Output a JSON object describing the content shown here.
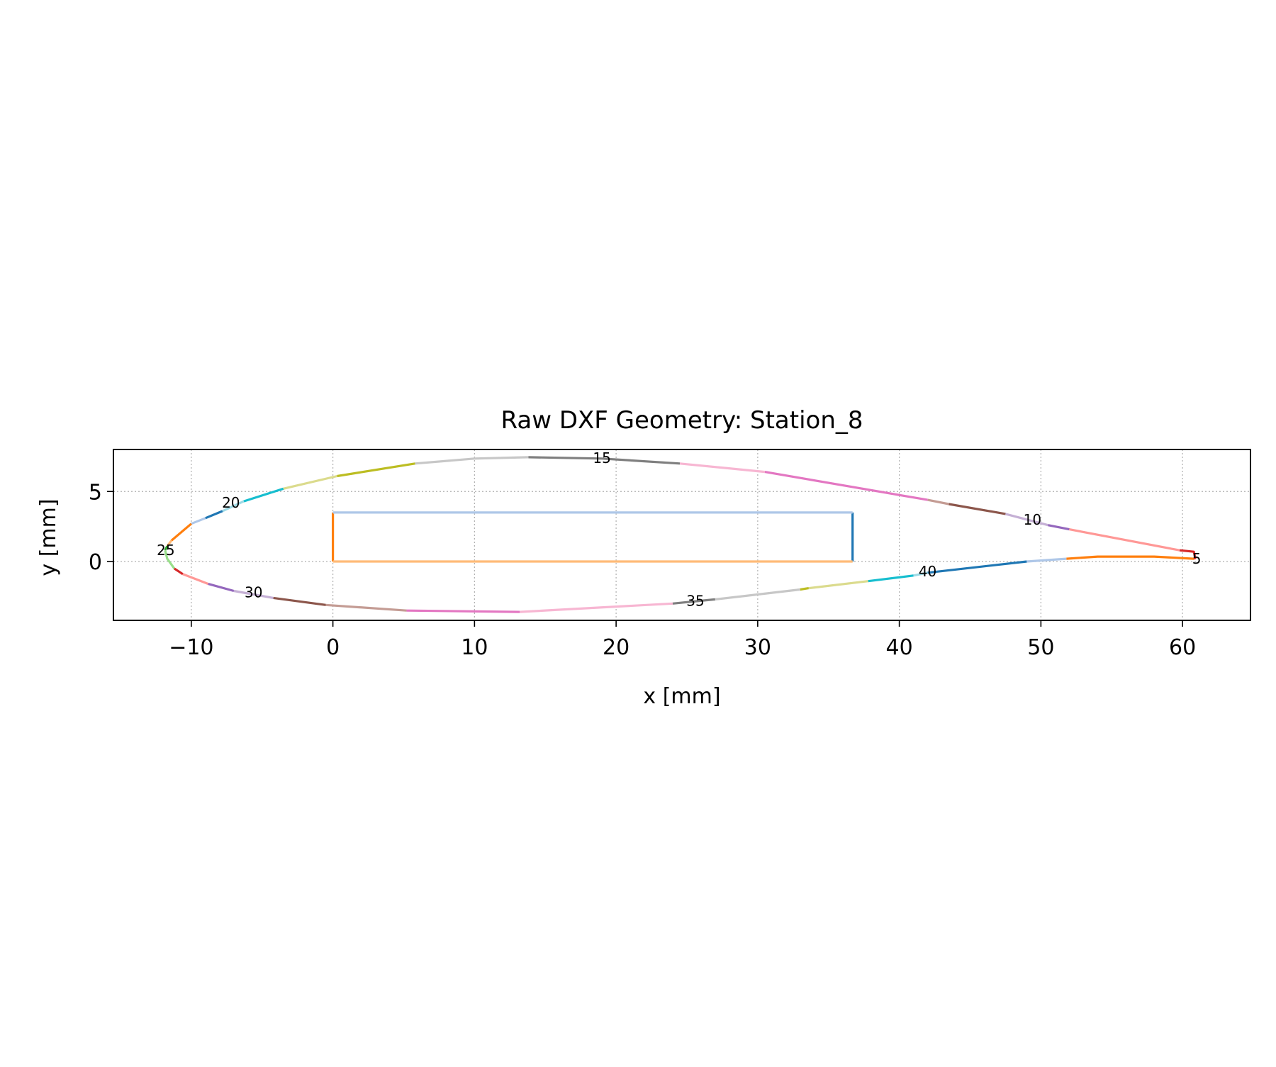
{
  "chart_data": {
    "type": "line",
    "title": "Raw DXF Geometry: Station_8",
    "xlabel": "x [mm]",
    "ylabel": "y [mm]",
    "xlim": [
      -15.5,
      64.8
    ],
    "ylim": [
      -4.2,
      8.0
    ],
    "xticks": [
      -10,
      0,
      10,
      20,
      30,
      40,
      50,
      60
    ],
    "yticks": [
      0,
      5
    ],
    "xtick_labels": [
      "−10",
      "0",
      "10",
      "20",
      "30",
      "40",
      "50",
      "60"
    ],
    "ytick_labels": [
      "0",
      "5"
    ],
    "grid": true,
    "aspect": "equal",
    "segments": [
      {
        "color": "#1f77b4",
        "points": [
          [
            36.7,
            3.5
          ],
          [
            36.7,
            0.0
          ]
        ]
      },
      {
        "color": "#ff7f0e",
        "points": [
          [
            0.0,
            3.5
          ],
          [
            0.0,
            0.0
          ]
        ]
      },
      {
        "color": "#aec7e8",
        "points": [
          [
            0.0,
            3.5
          ],
          [
            36.7,
            3.5
          ]
        ]
      },
      {
        "color": "#ffbb78",
        "points": [
          [
            0.0,
            0.0
          ],
          [
            36.7,
            0.0
          ]
        ]
      },
      {
        "color": "#ff7f0e",
        "points": [
          [
            51.8,
            0.2
          ],
          [
            54.0,
            0.35
          ],
          [
            56.0,
            0.35
          ],
          [
            58.0,
            0.35
          ],
          [
            60.8,
            0.2
          ]
        ]
      },
      {
        "color": "#d62728",
        "points": [
          [
            60.8,
            0.2
          ],
          [
            60.9,
            0.25
          ],
          [
            60.8,
            0.7
          ],
          [
            59.8,
            0.8
          ]
        ]
      },
      {
        "color": "#ff9896",
        "points": [
          [
            59.8,
            0.8
          ],
          [
            52.0,
            2.3
          ]
        ]
      },
      {
        "color": "#9467bd",
        "points": [
          [
            52.0,
            2.3
          ],
          [
            50.5,
            2.6
          ]
        ]
      },
      {
        "color": "#c5b0d5",
        "points": [
          [
            50.5,
            2.6
          ],
          [
            47.5,
            3.4
          ]
        ]
      },
      {
        "color": "#8c564b",
        "points": [
          [
            47.5,
            3.4
          ],
          [
            43.5,
            4.1
          ]
        ]
      },
      {
        "color": "#c49c94",
        "points": [
          [
            43.5,
            4.1
          ],
          [
            42.0,
            4.4
          ]
        ]
      },
      {
        "color": "#e377c2",
        "points": [
          [
            42.0,
            4.4
          ],
          [
            30.5,
            6.4
          ]
        ]
      },
      {
        "color": "#f7b6d2",
        "points": [
          [
            30.5,
            6.4
          ],
          [
            24.5,
            7.0
          ]
        ]
      },
      {
        "color": "#7f7f7f",
        "points": [
          [
            24.5,
            7.0
          ],
          [
            19.0,
            7.35
          ],
          [
            13.8,
            7.45
          ]
        ]
      },
      {
        "color": "#c7c7c7",
        "points": [
          [
            13.8,
            7.45
          ],
          [
            10.0,
            7.35
          ],
          [
            5.8,
            7.0
          ]
        ]
      },
      {
        "color": "#bcbd22",
        "points": [
          [
            5.8,
            7.0
          ],
          [
            0.3,
            6.1
          ]
        ]
      },
      {
        "color": "#dbdb8d",
        "points": [
          [
            0.3,
            6.1
          ],
          [
            -3.5,
            5.2
          ]
        ]
      },
      {
        "color": "#17becf",
        "points": [
          [
            -3.5,
            5.2
          ],
          [
            -6.3,
            4.3
          ]
        ]
      },
      {
        "color": "#9edae5",
        "points": [
          [
            -6.3,
            4.3
          ],
          [
            -7.8,
            3.6
          ]
        ]
      },
      {
        "color": "#1f77b4",
        "points": [
          [
            -7.8,
            3.6
          ],
          [
            -9.0,
            3.1
          ]
        ]
      },
      {
        "color": "#aec7e8",
        "points": [
          [
            -9.0,
            3.1
          ],
          [
            -10.0,
            2.7
          ]
        ]
      },
      {
        "color": "#ff7f0e",
        "points": [
          [
            -10.0,
            2.7
          ],
          [
            -11.4,
            1.5
          ]
        ]
      },
      {
        "color": "#ffbb78",
        "points": [
          [
            -11.4,
            1.5
          ],
          [
            -11.7,
            1.1
          ]
        ]
      },
      {
        "color": "#2ca02c",
        "points": [
          [
            -11.7,
            1.1
          ],
          [
            -11.85,
            0.8
          ]
        ]
      },
      {
        "color": "#98df8a",
        "points": [
          [
            -11.85,
            0.8
          ],
          [
            -11.7,
            0.2
          ],
          [
            -11.2,
            -0.5
          ]
        ]
      },
      {
        "color": "#d62728",
        "points": [
          [
            -11.2,
            -0.5
          ],
          [
            -10.6,
            -0.9
          ]
        ]
      },
      {
        "color": "#ff9896",
        "points": [
          [
            -10.6,
            -0.9
          ],
          [
            -8.8,
            -1.6
          ]
        ]
      },
      {
        "color": "#9467bd",
        "points": [
          [
            -8.8,
            -1.6
          ],
          [
            -7.0,
            -2.1
          ]
        ]
      },
      {
        "color": "#c5b0d5",
        "points": [
          [
            -7.0,
            -2.1
          ],
          [
            -4.2,
            -2.6
          ]
        ]
      },
      {
        "color": "#8c564b",
        "points": [
          [
            -4.2,
            -2.6
          ],
          [
            -0.5,
            -3.1
          ]
        ]
      },
      {
        "color": "#c49c94",
        "points": [
          [
            -0.5,
            -3.1
          ],
          [
            5.2,
            -3.5
          ]
        ]
      },
      {
        "color": "#e377c2",
        "points": [
          [
            5.2,
            -3.5
          ],
          [
            13.2,
            -3.6
          ]
        ]
      },
      {
        "color": "#f7b6d2",
        "points": [
          [
            13.2,
            -3.6
          ],
          [
            24.0,
            -3.0
          ]
        ]
      },
      {
        "color": "#7f7f7f",
        "points": [
          [
            24.0,
            -3.0
          ],
          [
            27.0,
            -2.7
          ]
        ]
      },
      {
        "color": "#c7c7c7",
        "points": [
          [
            27.0,
            -2.7
          ],
          [
            33.0,
            -2.0
          ]
        ]
      },
      {
        "color": "#bcbd22",
        "points": [
          [
            33.0,
            -2.0
          ],
          [
            33.6,
            -1.9
          ]
        ]
      },
      {
        "color": "#dbdb8d",
        "points": [
          [
            33.6,
            -1.9
          ],
          [
            37.8,
            -1.4
          ]
        ]
      },
      {
        "color": "#17becf",
        "points": [
          [
            37.8,
            -1.4
          ],
          [
            41.0,
            -1.0
          ]
        ]
      },
      {
        "color": "#9edae5",
        "points": [
          [
            41.0,
            -1.0
          ],
          [
            42.0,
            -0.8
          ]
        ]
      },
      {
        "color": "#1f77b4",
        "points": [
          [
            42.0,
            -0.8
          ],
          [
            49.0,
            0.0
          ]
        ]
      },
      {
        "color": "#aec7e8",
        "points": [
          [
            49.0,
            0.0
          ],
          [
            51.8,
            0.2
          ]
        ]
      }
    ],
    "segment_labels": [
      {
        "text": "5",
        "x": 61.0,
        "y": 0.2
      },
      {
        "text": "10",
        "x": 49.4,
        "y": 3.0
      },
      {
        "text": "15",
        "x": 19.0,
        "y": 7.4
      },
      {
        "text": "20",
        "x": -7.2,
        "y": 4.2
      },
      {
        "text": "25",
        "x": -11.8,
        "y": 0.8
      },
      {
        "text": "30",
        "x": -5.6,
        "y": -2.2
      },
      {
        "text": "35",
        "x": 25.6,
        "y": -2.8
      },
      {
        "text": "40",
        "x": 42.0,
        "y": -0.7
      }
    ]
  }
}
